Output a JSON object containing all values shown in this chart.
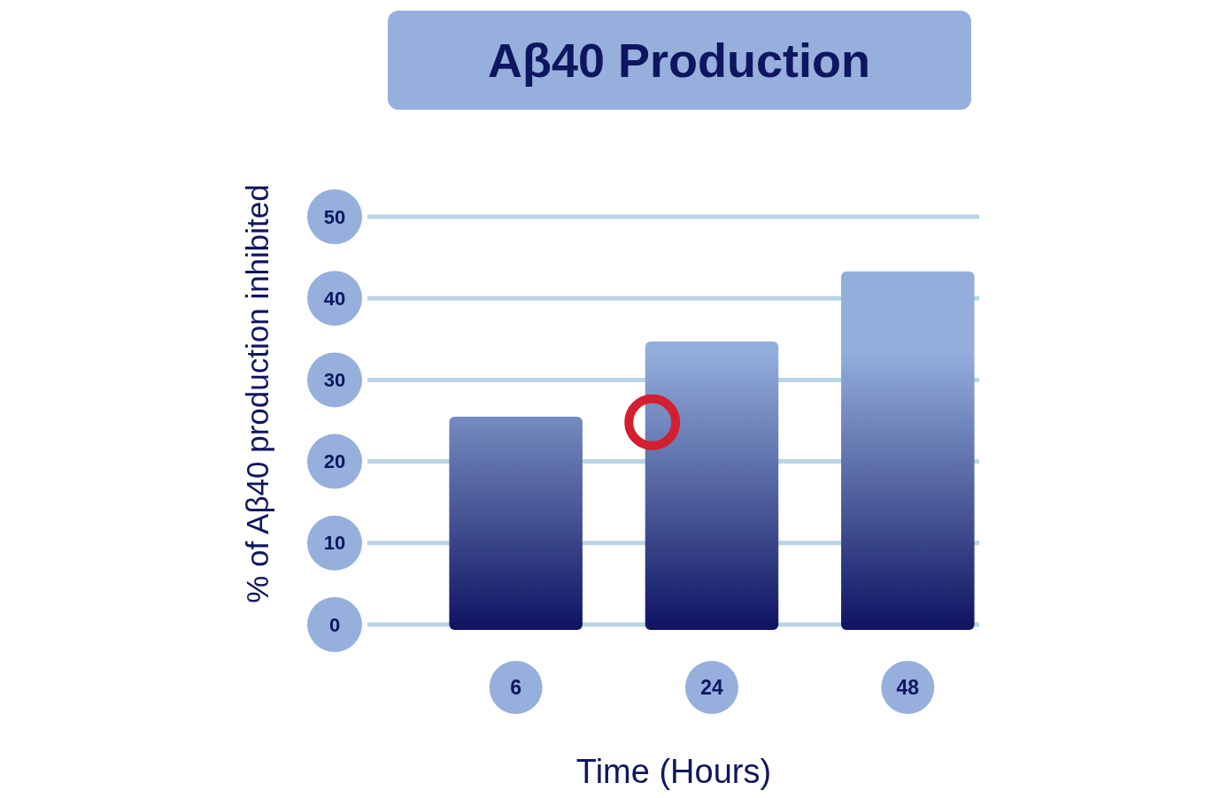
{
  "chart_data": {
    "type": "bar",
    "title": "Aβ40 Production",
    "xlabel": "Time (Hours)",
    "ylabel": "% of Aβ40 production inhibited",
    "categories": [
      "6",
      "24",
      "48"
    ],
    "values": [
      25.5,
      34.7,
      43.3
    ],
    "color": "#52629f",
    "ylim": [
      0,
      50
    ],
    "yticks": [
      0,
      10,
      20,
      30,
      40,
      50
    ],
    "grid": "y"
  }
}
